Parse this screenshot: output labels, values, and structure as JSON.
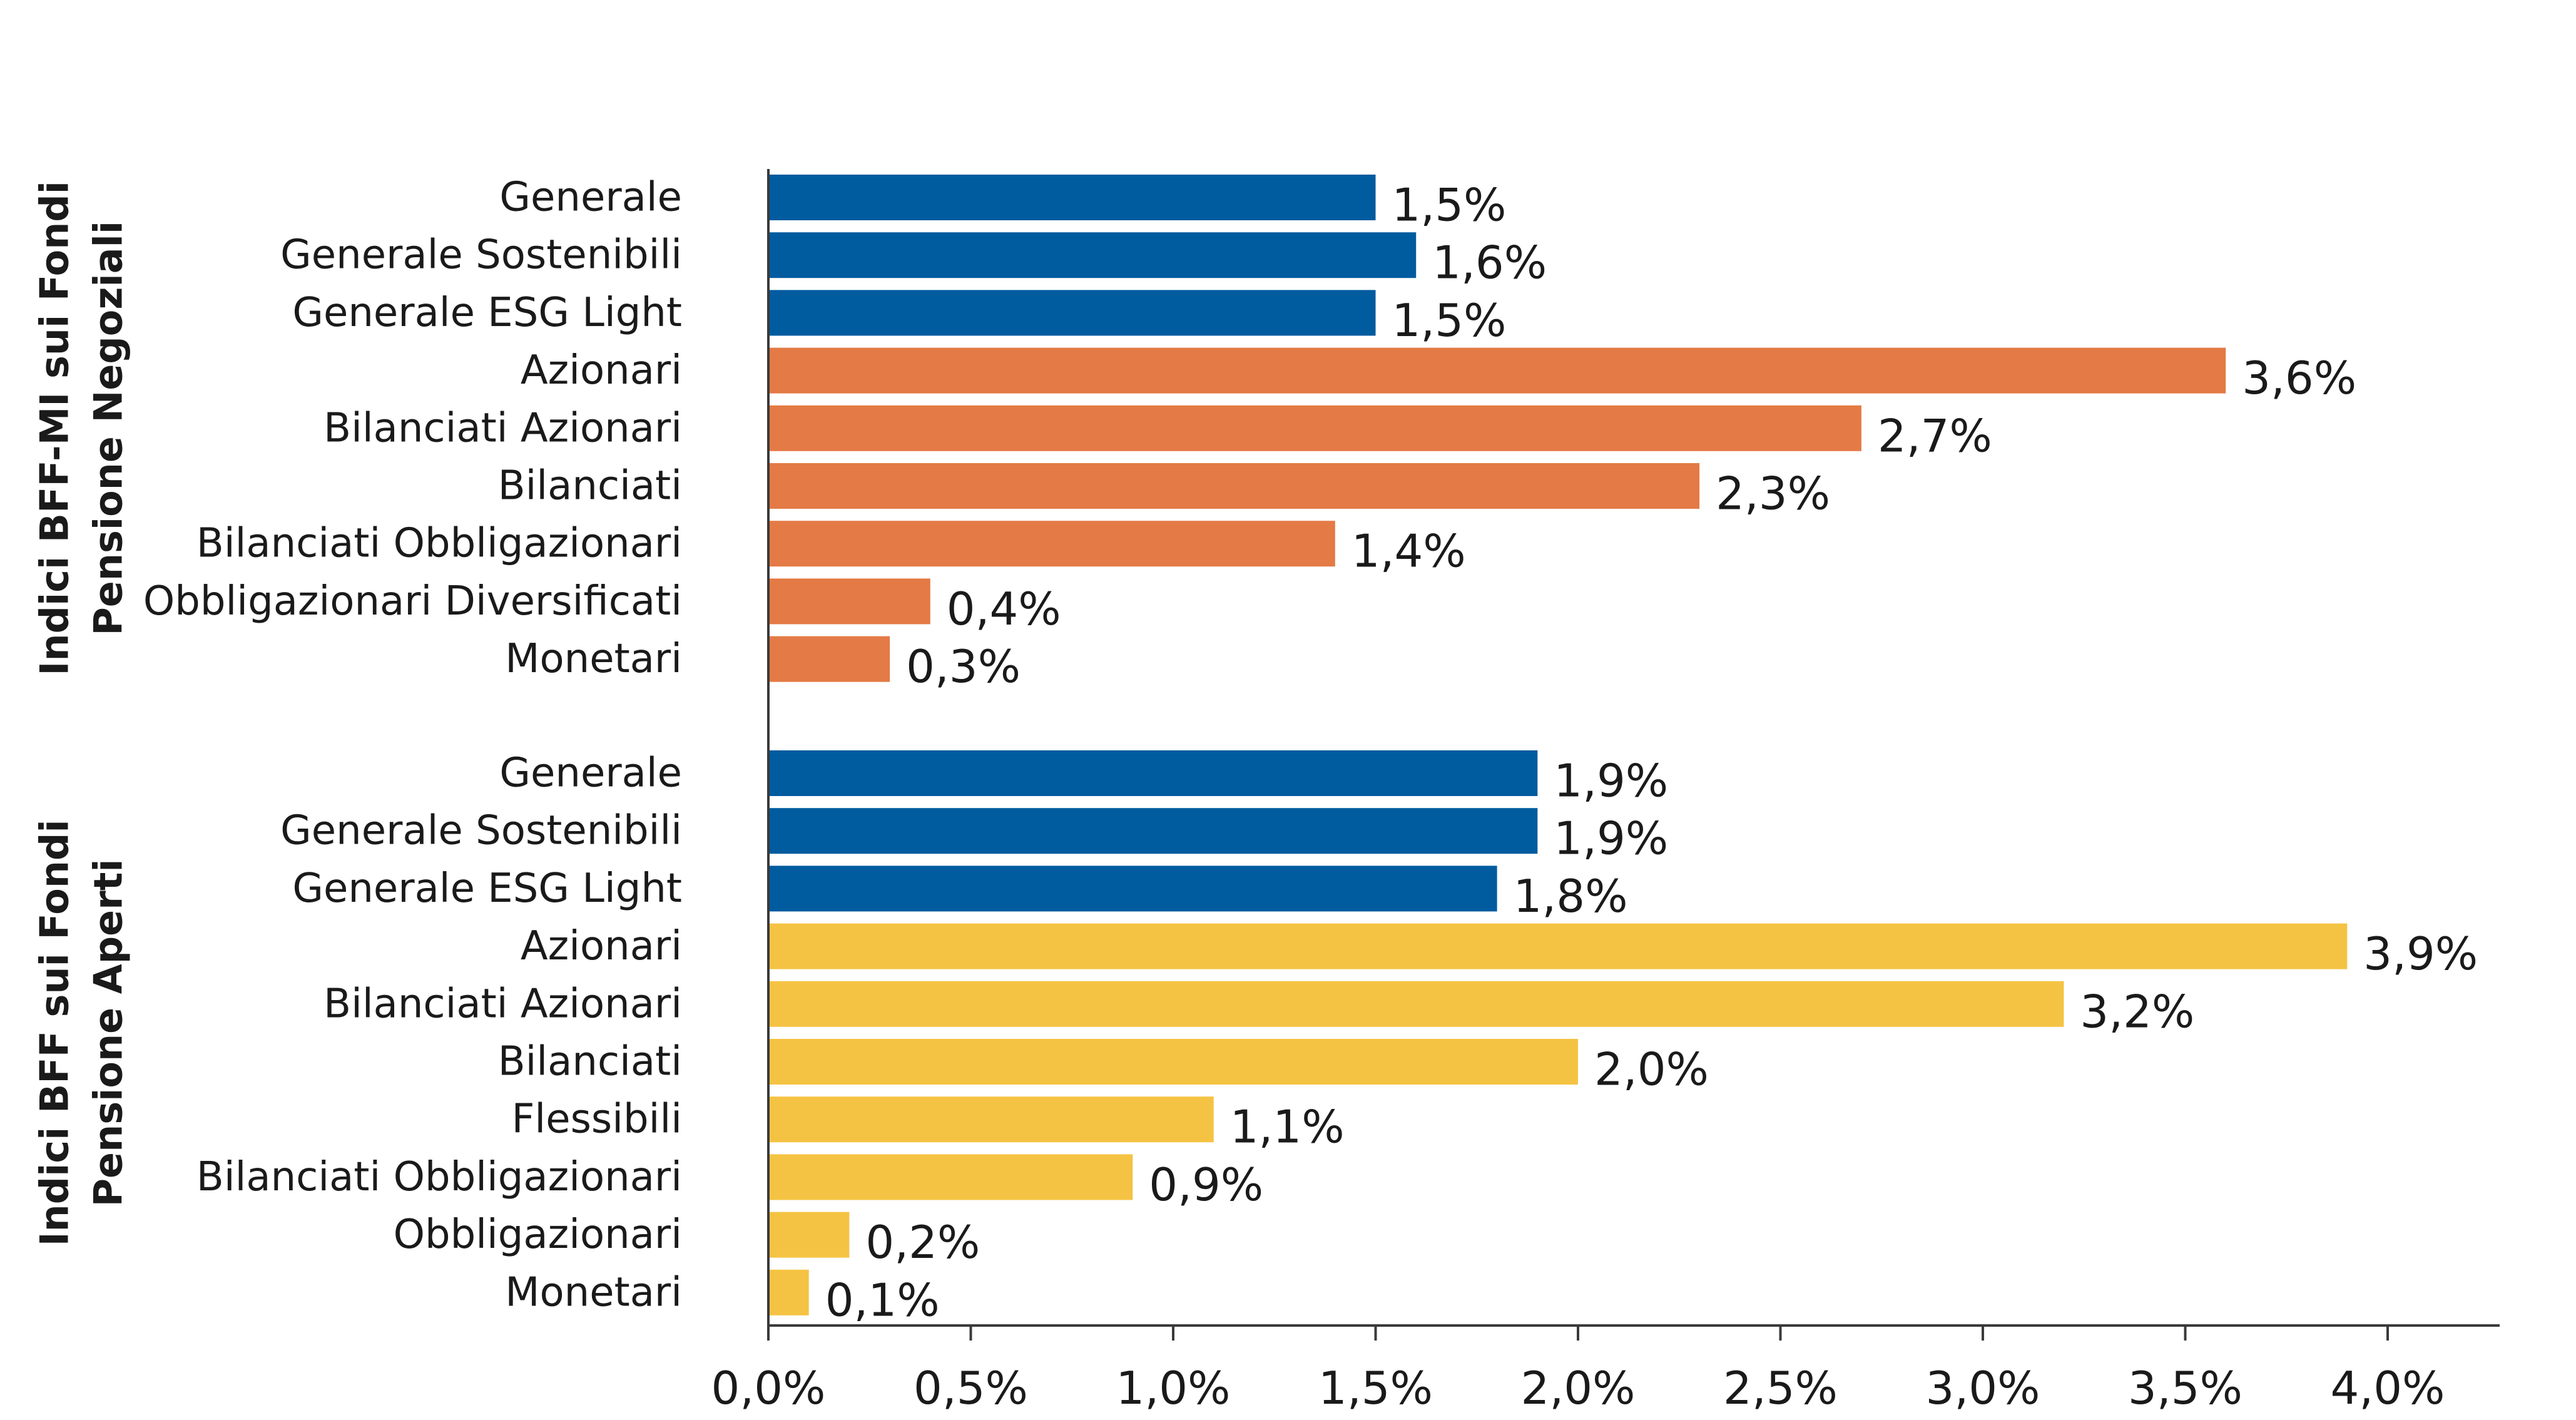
{
  "chart_data": {
    "type": "bar",
    "orientation": "horizontal",
    "xlim": [
      0,
      4.25
    ],
    "ticks": [
      "0,0%",
      "0,5%",
      "1,0%",
      "1,5%",
      "2,0%",
      "2,5%",
      "3,0%",
      "3,5%",
      "4,0%"
    ],
    "tick_values": [
      0,
      0.5,
      1.0,
      1.5,
      2.0,
      2.5,
      3.0,
      3.5,
      4.0
    ],
    "grid": false,
    "colors": {
      "general": "#005B9F",
      "negoziali": "#E47A45",
      "aperti": "#F5C343"
    },
    "groups": [
      {
        "title_lines": [
          "Indici BFF-MI sui Fondi",
          "Pensione Negoziali"
        ],
        "bars": [
          {
            "label": "Generale",
            "value": 1.5,
            "value_label": "1,5%",
            "color_key": "general"
          },
          {
            "label": "Generale Sostenibili",
            "value": 1.6,
            "value_label": "1,6%",
            "color_key": "general"
          },
          {
            "label": "Generale ESG Light",
            "value": 1.5,
            "value_label": "1,5%",
            "color_key": "general"
          },
          {
            "label": "Azionari",
            "value": 3.6,
            "value_label": "3,6%",
            "color_key": "negoziali"
          },
          {
            "label": "Bilanciati Azionari",
            "value": 2.7,
            "value_label": "2,7%",
            "color_key": "negoziali"
          },
          {
            "label": "Bilanciati",
            "value": 2.3,
            "value_label": "2,3%",
            "color_key": "negoziali"
          },
          {
            "label": "Bilanciati Obbligazionari",
            "value": 1.4,
            "value_label": "1,4%",
            "color_key": "negoziali"
          },
          {
            "label": "Obbligazionari Diversificati",
            "value": 0.4,
            "value_label": "0,4%",
            "color_key": "negoziali"
          },
          {
            "label": "Monetari",
            "value": 0.3,
            "value_label": "0,3%",
            "color_key": "negoziali"
          }
        ]
      },
      {
        "title_lines": [
          "Indici BFF sui Fondi",
          "Pensione Aperti"
        ],
        "bars": [
          {
            "label": "Generale",
            "value": 1.9,
            "value_label": "1,9%",
            "color_key": "general"
          },
          {
            "label": "Generale Sostenibili",
            "value": 1.9,
            "value_label": "1,9%",
            "color_key": "general"
          },
          {
            "label": "Generale ESG Light",
            "value": 1.8,
            "value_label": "1,8%",
            "color_key": "general"
          },
          {
            "label": "Azionari",
            "value": 3.9,
            "value_label": "3,9%",
            "color_key": "aperti"
          },
          {
            "label": "Bilanciati Azionari",
            "value": 3.2,
            "value_label": "3,2%",
            "color_key": "aperti"
          },
          {
            "label": "Bilanciati",
            "value": 2.0,
            "value_label": "2,0%",
            "color_key": "aperti"
          },
          {
            "label": "Flessibili",
            "value": 1.1,
            "value_label": "1,1%",
            "color_key": "aperti"
          },
          {
            "label": "Bilanciati Obbligazionari",
            "value": 0.9,
            "value_label": "0,9%",
            "color_key": "aperti"
          },
          {
            "label": "Obbligazionari",
            "value": 0.2,
            "value_label": "0,2%",
            "color_key": "aperti"
          },
          {
            "label": "Monetari",
            "value": 0.1,
            "value_label": "0,1%",
            "color_key": "aperti"
          }
        ]
      }
    ]
  }
}
